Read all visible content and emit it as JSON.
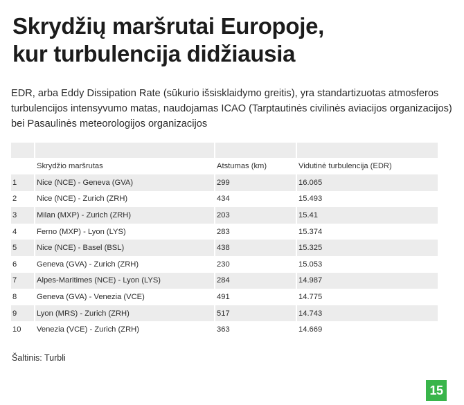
{
  "title_line1": "Skrydžių maršrutai Europoje,",
  "title_line2": "kur turbulencija didžiausia",
  "subtitle": "EDR, arba Eddy Dissipation Rate (sūkurio išsisklaidymo greitis), yra standartizuotas atmosferos turbulencijos intensyvumo matas, naudojamas ICAO (Tarptautinės civilinės aviacijos organizacijos) bei Pasaulinės meteorologijos organizacijos",
  "source": "Šaltinis: Turbli",
  "logo": "15",
  "colors": {
    "stripe": "#ececec",
    "logo_green": "#39b54a"
  },
  "chart_data": {
    "type": "table",
    "columns": [
      "",
      "Skrydžio maršrutas",
      "Atstumas (km)",
      "Vidutinė turbulencija (EDR)"
    ],
    "rows": [
      [
        "1",
        "Nice (NCE) - Geneva (GVA)",
        "299",
        "16.065"
      ],
      [
        "2",
        "Nice (NCE) - Zurich (ZRH)",
        "434",
        "15.493"
      ],
      [
        "3",
        "Milan (MXP) - Zurich (ZRH)",
        "203",
        "15.41"
      ],
      [
        "4",
        "Ferno (MXP) - Lyon (LYS)",
        "283",
        "15.374"
      ],
      [
        "5",
        "Nice (NCE) - Basel (BSL)",
        "438",
        "15.325"
      ],
      [
        "6",
        "Geneva (GVA) - Zurich (ZRH)",
        "230",
        "15.053"
      ],
      [
        "7",
        "Alpes-Maritimes (NCE) - Lyon (LYS)",
        "284",
        "14.987"
      ],
      [
        "8",
        "Geneva (GVA) - Venezia (VCE)",
        "491",
        "14.775"
      ],
      [
        "9",
        "Lyon (MRS) - Zurich (ZRH)",
        "517",
        "14.743"
      ],
      [
        "10",
        "Venezia (VCE) - Zurich (ZRH)",
        "363",
        "14.669"
      ]
    ]
  }
}
